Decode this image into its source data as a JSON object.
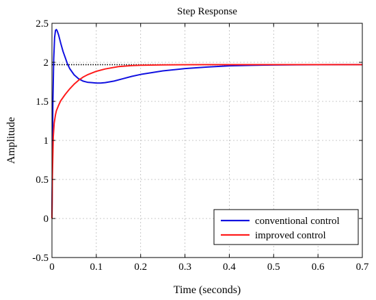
{
  "chart_data": {
    "type": "line",
    "title": "Step Response",
    "xlabel": "Time (seconds)",
    "ylabel": "Amplitude",
    "xlim": [
      0,
      0.7
    ],
    "ylim": [
      -0.5,
      2.5
    ],
    "xticks": [
      0,
      0.1,
      0.2,
      0.3,
      0.4,
      0.5,
      0.6,
      0.7
    ],
    "xtick_labels": [
      "0",
      "0.1",
      "0.2",
      "0.3",
      "0.4",
      "0.5",
      "0.6",
      "0.7"
    ],
    "yticks": [
      -0.5,
      0,
      0.5,
      1,
      1.5,
      2,
      2.5
    ],
    "ytick_labels": [
      "-0.5",
      "0",
      "0.5",
      "1",
      "1.5",
      "2",
      "2.5"
    ],
    "grid": true,
    "legend_position": "bottom-right",
    "reference_line": {
      "y": 1.97,
      "style": "dotted",
      "color": "#000000"
    },
    "series": [
      {
        "name": "conventional control",
        "color": "#1010e0",
        "x": [
          0,
          0.002,
          0.004,
          0.006,
          0.008,
          0.01,
          0.012,
          0.015,
          0.02,
          0.025,
          0.03,
          0.035,
          0.04,
          0.05,
          0.06,
          0.07,
          0.08,
          0.09,
          0.1,
          0.11,
          0.12,
          0.14,
          0.16,
          0.18,
          0.2,
          0.25,
          0.3,
          0.35,
          0.4,
          0.45,
          0.5,
          0.55,
          0.6,
          0.65,
          0.7
        ],
        "y": [
          0,
          1.45,
          2.05,
          2.32,
          2.41,
          2.42,
          2.4,
          2.35,
          2.24,
          2.14,
          2.06,
          1.98,
          1.92,
          1.84,
          1.79,
          1.76,
          1.745,
          1.74,
          1.735,
          1.735,
          1.74,
          1.76,
          1.79,
          1.82,
          1.845,
          1.89,
          1.92,
          1.94,
          1.955,
          1.962,
          1.966,
          1.968,
          1.969,
          1.97,
          1.97
        ]
      },
      {
        "name": " improved control",
        "color": "#ff1a1a",
        "x": [
          0,
          0.001,
          0.003,
          0.005,
          0.008,
          0.01,
          0.015,
          0.02,
          0.03,
          0.04,
          0.05,
          0.06,
          0.07,
          0.08,
          0.1,
          0.12,
          0.15,
          0.18,
          0.2,
          0.25,
          0.3,
          0.35,
          0.4,
          0.45,
          0.5,
          0.6,
          0.7
        ],
        "y": [
          0,
          0.55,
          1.05,
          1.22,
          1.33,
          1.38,
          1.45,
          1.51,
          1.59,
          1.66,
          1.72,
          1.77,
          1.81,
          1.84,
          1.885,
          1.915,
          1.945,
          1.958,
          1.963,
          1.967,
          1.969,
          1.97,
          1.97,
          1.97,
          1.97,
          1.97,
          1.97
        ]
      }
    ]
  }
}
